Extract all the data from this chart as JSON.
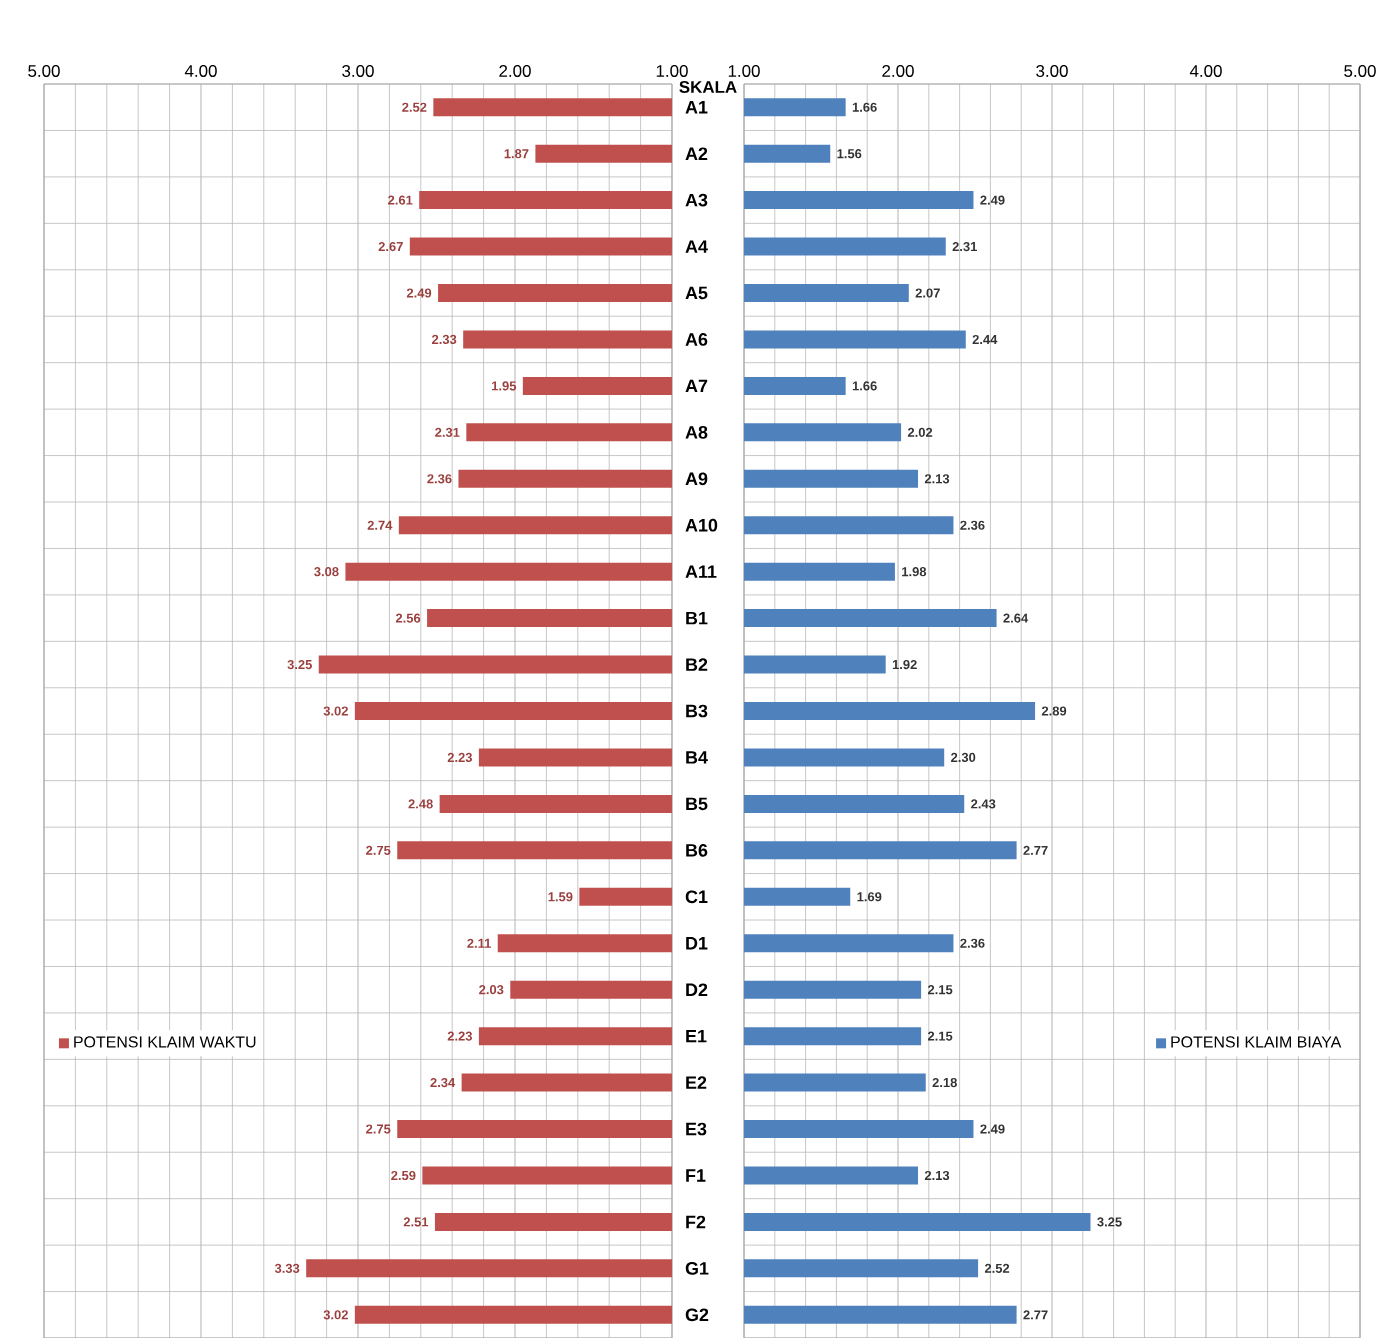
{
  "chart_data": [
    {
      "type": "bar",
      "orientation": "horizontal",
      "grid": true,
      "legend": "bottom left",
      "ylabel": "SKALA",
      "categories": [
        "A1",
        "A2",
        "A3",
        "A4",
        "A5",
        "A6",
        "A7",
        "A8",
        "A9",
        "A10",
        "A11",
        "B1",
        "B2",
        "B3",
        "B4",
        "B5",
        "B6",
        "C1",
        "D1",
        "D2",
        "E1",
        "E2",
        "E3",
        "F1",
        "F2",
        "G1",
        "G2"
      ],
      "xlim": [
        5,
        1
      ],
      "xticks": [
        {
          "value": 5,
          "label": "5.00"
        },
        {
          "value": 4,
          "label": "4.00"
        },
        {
          "value": 3,
          "label": "3.00"
        },
        {
          "value": 2,
          "label": "2.00"
        },
        {
          "value": 1,
          "label": "1.00"
        }
      ],
      "series": [
        {
          "name": "POTENSI KLAIM WAKTU",
          "color": "#c0504d",
          "values": [
            2.52,
            1.87,
            2.61,
            2.67,
            2.49,
            2.33,
            1.95,
            2.31,
            2.36,
            2.74,
            3.08,
            2.56,
            3.25,
            3.02,
            2.23,
            2.48,
            2.75,
            1.59,
            2.11,
            2.03,
            2.23,
            2.34,
            2.75,
            2.59,
            2.51,
            3.33,
            3.02
          ],
          "value_labels": [
            "2.52",
            "1.87",
            "2.61",
            "2.67",
            "2.49",
            "2.33",
            "1.95",
            "2.31",
            "2.36",
            "2.74",
            "3.08",
            "2.56",
            "3.25",
            "3.02",
            "2.23",
            "2.48",
            "2.75",
            "1.59",
            "2.11",
            "2.03",
            "2.23",
            "2.34",
            "2.75",
            "2.59",
            "2.51",
            "3.33",
            "3.02"
          ]
        }
      ]
    },
    {
      "type": "bar",
      "orientation": "horizontal",
      "tick_labels": "x",
      "grid": true,
      "legend": "bottom right",
      "categories": [
        null,
        null,
        null,
        null,
        null,
        null,
        null,
        null,
        null,
        null,
        null,
        null,
        null,
        null,
        null,
        null,
        null,
        null,
        null,
        null,
        null,
        null,
        null,
        null,
        null,
        null,
        null
      ],
      "xlim": [
        1,
        5
      ],
      "xticks": [
        {
          "value": 1,
          "label": "1.00"
        },
        {
          "value": 2,
          "label": "2.00"
        },
        {
          "value": 3,
          "label": "3.00"
        },
        {
          "value": 4,
          "label": "4.00"
        },
        {
          "value": 5,
          "label": "5.00"
        }
      ],
      "series": [
        {
          "name": "POTENSI KLAIM BIAYA",
          "color": "#4f81bd",
          "values": [
            1.66,
            1.56,
            2.49,
            2.31,
            2.07,
            2.44,
            1.66,
            2.02,
            2.13,
            2.36,
            1.98,
            2.64,
            1.92,
            2.89,
            2.3,
            2.43,
            2.77,
            1.69,
            2.36,
            2.15,
            2.15,
            2.18,
            2.49,
            2.13,
            3.25,
            2.52,
            2.77
          ],
          "value_labels": [
            "1.66",
            "1.56",
            "2.49",
            "2.31",
            "2.07",
            "2.44",
            "1.66",
            "2.02",
            "2.13",
            "2.36",
            "1.98",
            "2.64",
            "1.92",
            "2.89",
            "2.30",
            "2.43",
            "2.77",
            "1.69",
            "2.36",
            "2.15",
            "2.15",
            "2.18",
            "2.49",
            "2.13",
            "3.25",
            "2.52",
            "2.77"
          ]
        }
      ]
    }
  ]
}
